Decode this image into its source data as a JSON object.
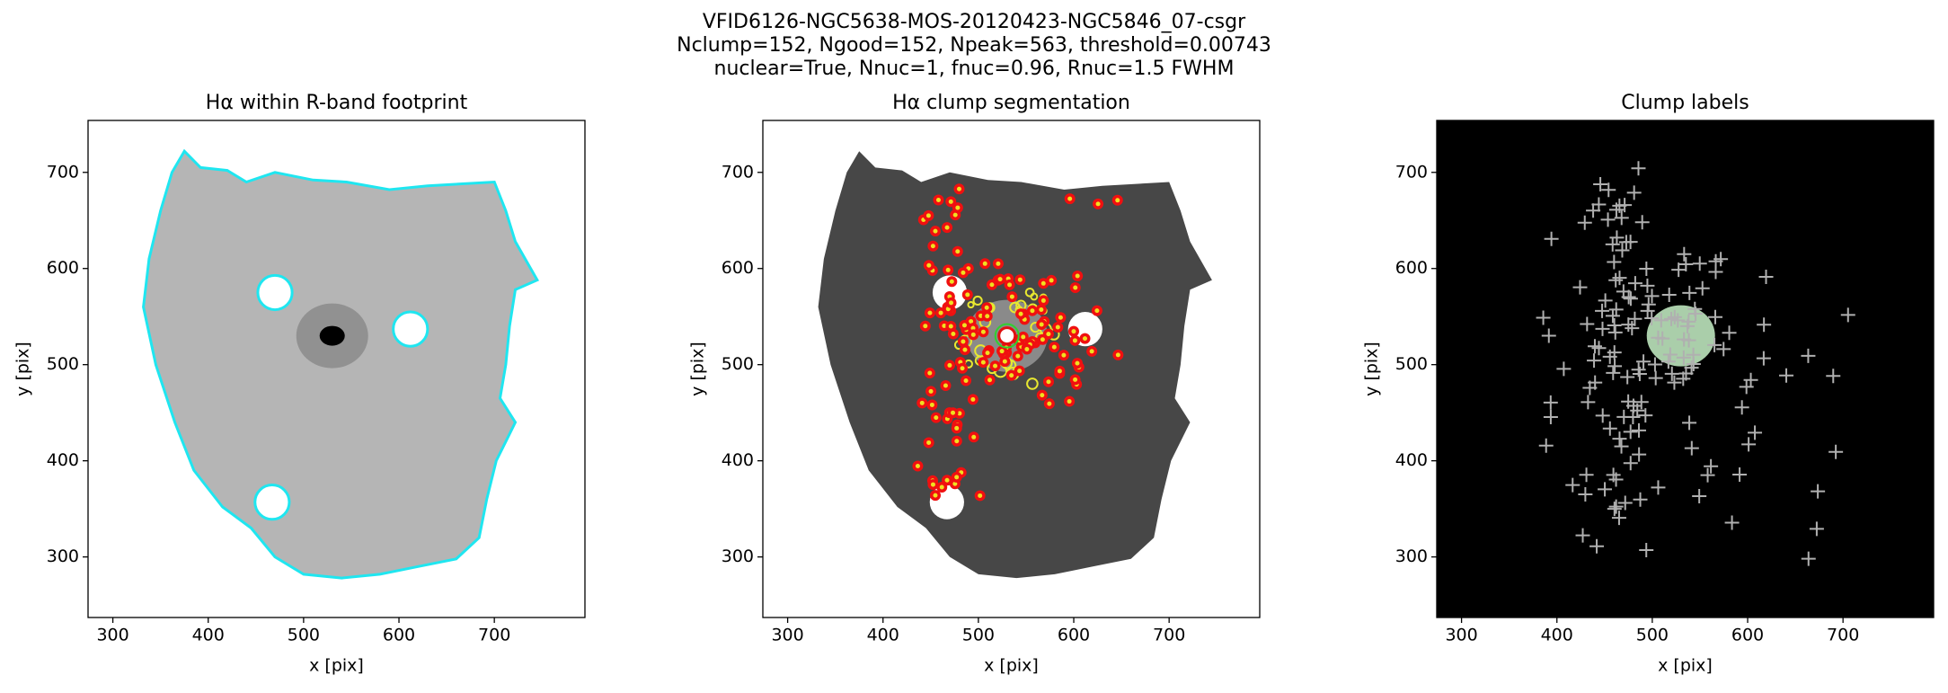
{
  "suptitle": [
    "VFID6126-NGC5638-MOS-20120423-NGC5846_07-csgr",
    "Nclump=152, Ngood=152, Npeak=563, threshold=0.00743",
    "nuclear=True, Nnuc=1, fnuc=0.96, Rnuc=1.5 FWHM"
  ],
  "chart_data": [
    {
      "type": "image",
      "title": "Hα within R-band footprint",
      "xlabel": "x [pix]",
      "ylabel": "y [pix]",
      "xlim": [
        274,
        795
      ],
      "ylim": [
        237,
        754
      ],
      "xticks": [
        300,
        400,
        500,
        600,
        700
      ],
      "yticks": [
        300,
        400,
        500,
        600,
        700
      ]
    },
    {
      "type": "image",
      "title": "Hα clump segmentation",
      "xlabel": "x [pix]",
      "ylabel": "y [pix]",
      "xlim": [
        274,
        795
      ],
      "ylim": [
        237,
        754
      ],
      "xticks": [
        300,
        400,
        500,
        600,
        700
      ],
      "yticks": [
        300,
        400,
        500,
        600,
        700
      ]
    },
    {
      "type": "image",
      "title": "Clump labels",
      "xlabel": "x [pix]",
      "ylabel": "y [pix]",
      "xlim": [
        274,
        795
      ],
      "ylim": [
        237,
        754
      ],
      "xticks": [
        300,
        400,
        500,
        600,
        700
      ],
      "yticks": [
        300,
        400,
        500,
        600,
        700
      ]
    }
  ]
}
